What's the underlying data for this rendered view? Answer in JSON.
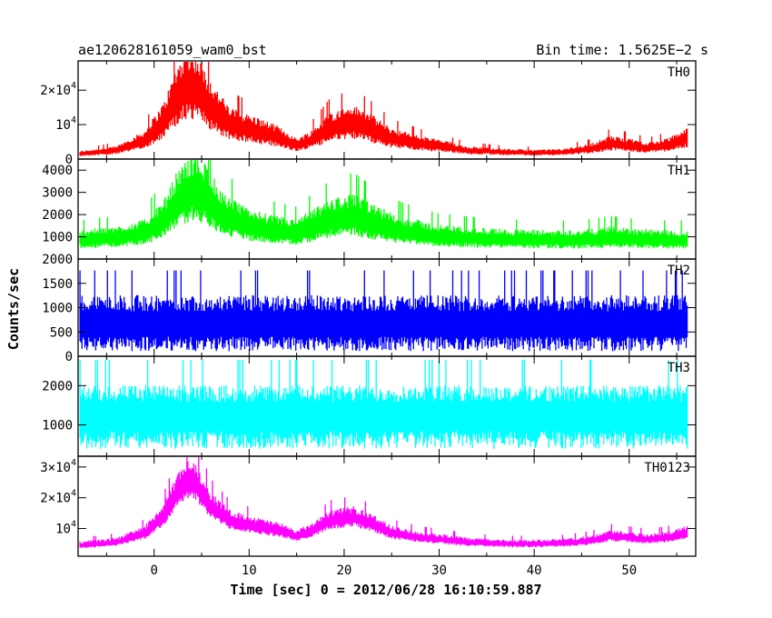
{
  "header": {
    "left": "ae120628161059_wam0_bst",
    "right": "Bin time: 1.5625E−2 s"
  },
  "chart_data": {
    "type": "line",
    "xlabel": "Time [sec] 0 = 2012/06/28 16:10:59.887",
    "ylabel": "Counts/sec",
    "xlim": [
      -8,
      57
    ],
    "x_ticks": [
      0,
      10,
      20,
      30,
      40,
      50
    ],
    "x_tick_labels": [
      "0",
      "10",
      "20",
      "30",
      "40",
      "50"
    ],
    "x_range": [
      -7.8,
      56.1
    ],
    "grid": false,
    "panels": [
      {
        "name": "TH0",
        "color": "#ff0000",
        "ylim": [
          0,
          28500
        ],
        "ticks": [
          {
            "v": 0,
            "label": "0"
          },
          {
            "v": 10000,
            "label": "10",
            "exp": "4"
          },
          {
            "v": 20000,
            "label": "2×10",
            "exp": "4"
          }
        ],
        "baseline": 200,
        "noise": [
          0.45,
          0.5
        ],
        "profile": [
          [
            -8,
            1500
          ],
          [
            -4,
            2500
          ],
          [
            -1,
            5500
          ],
          [
            1,
            11000
          ],
          [
            2.5,
            18500
          ],
          [
            3.5,
            21500
          ],
          [
            4.5,
            20500
          ],
          [
            6,
            15000
          ],
          [
            8,
            10000
          ],
          [
            11,
            8000
          ],
          [
            13,
            6500
          ],
          [
            15,
            4000
          ],
          [
            16.5,
            5500
          ],
          [
            18.5,
            9000
          ],
          [
            21,
            10500
          ],
          [
            23,
            8500
          ],
          [
            25,
            6000
          ],
          [
            28,
            4500
          ],
          [
            30,
            3800
          ],
          [
            33,
            2500
          ],
          [
            37,
            2000
          ],
          [
            40,
            1800
          ],
          [
            43,
            2000
          ],
          [
            46,
            3000
          ],
          [
            48,
            4500
          ],
          [
            50,
            4000
          ],
          [
            52,
            3200
          ],
          [
            54,
            4000
          ],
          [
            56,
            6000
          ]
        ]
      },
      {
        "name": "TH1",
        "color": "#00ff00",
        "ylim": [
          0,
          4500
        ],
        "ticks": [
          {
            "v": 1000,
            "label": "1000"
          },
          {
            "v": 2000,
            "label": "2000"
          },
          {
            "v": 3000,
            "label": "3000"
          },
          {
            "v": 4000,
            "label": "4000"
          }
        ],
        "baseline": 100,
        "noise": [
          0.45,
          0.55
        ],
        "profile": [
          [
            -8,
            850
          ],
          [
            -4,
            950
          ],
          [
            -1,
            1150
          ],
          [
            1,
            1700
          ],
          [
            2.5,
            2600
          ],
          [
            4,
            3100
          ],
          [
            5.5,
            2800
          ],
          [
            7,
            2000
          ],
          [
            9,
            1600
          ],
          [
            12,
            1300
          ],
          [
            15,
            1150
          ],
          [
            17,
            1500
          ],
          [
            19,
            1800
          ],
          [
            21,
            1900
          ],
          [
            23,
            1600
          ],
          [
            26,
            1250
          ],
          [
            30,
            1000
          ],
          [
            35,
            900
          ],
          [
            40,
            850
          ],
          [
            45,
            850
          ],
          [
            48,
            950
          ],
          [
            50,
            900
          ],
          [
            53,
            850
          ],
          [
            56,
            850
          ]
        ]
      },
      {
        "name": "TH2",
        "color": "#0000ff",
        "ylim": [
          0,
          2000
        ],
        "ticks": [
          {
            "v": 0,
            "label": "0"
          },
          {
            "v": 500,
            "label": "500"
          },
          {
            "v": 1000,
            "label": "1000"
          },
          {
            "v": 1500,
            "label": "1500"
          },
          {
            "v": 2000,
            "label": "2000"
          }
        ],
        "baseline": 20,
        "noise": [
          0.85,
          0.8
        ],
        "profile": [
          [
            -8,
            700
          ],
          [
            56,
            700
          ]
        ]
      },
      {
        "name": "TH3",
        "color": "#00ffff",
        "ylim": [
          200,
          2750
        ],
        "ticks": [
          {
            "v": 1000,
            "label": "1000"
          },
          {
            "v": 2000,
            "label": "2000"
          }
        ],
        "baseline": 300,
        "noise": [
          0.7,
          0.55
        ],
        "profile": [
          [
            -8,
            1300
          ],
          [
            56,
            1300
          ]
        ]
      },
      {
        "name": "TH0123",
        "color": "#ff00ff",
        "ylim": [
          1000,
          33500
        ],
        "ticks": [
          {
            "v": 10000,
            "label": "10",
            "exp": "4"
          },
          {
            "v": 20000,
            "label": "2×10",
            "exp": "4"
          },
          {
            "v": 30000,
            "label": "3×10",
            "exp": "4"
          }
        ],
        "baseline": 2500,
        "noise": [
          0.22,
          0.28
        ],
        "profile": [
          [
            -8,
            4500
          ],
          [
            -4,
            5500
          ],
          [
            -1,
            8500
          ],
          [
            1,
            14000
          ],
          [
            2.5,
            22000
          ],
          [
            3.5,
            25500
          ],
          [
            4.5,
            24000
          ],
          [
            6,
            17000
          ],
          [
            8,
            12500
          ],
          [
            11,
            10500
          ],
          [
            13,
            9500
          ],
          [
            15,
            7500
          ],
          [
            16.5,
            9000
          ],
          [
            18.5,
            12500
          ],
          [
            21,
            13500
          ],
          [
            23,
            11500
          ],
          [
            25,
            8500
          ],
          [
            28,
            7000
          ],
          [
            30,
            6500
          ],
          [
            33,
            5500
          ],
          [
            37,
            5000
          ],
          [
            40,
            5000
          ],
          [
            43,
            5200
          ],
          [
            46,
            6000
          ],
          [
            48,
            7500
          ],
          [
            50,
            7000
          ],
          [
            52,
            6500
          ],
          [
            54,
            7000
          ],
          [
            56,
            8500
          ]
        ]
      }
    ]
  }
}
